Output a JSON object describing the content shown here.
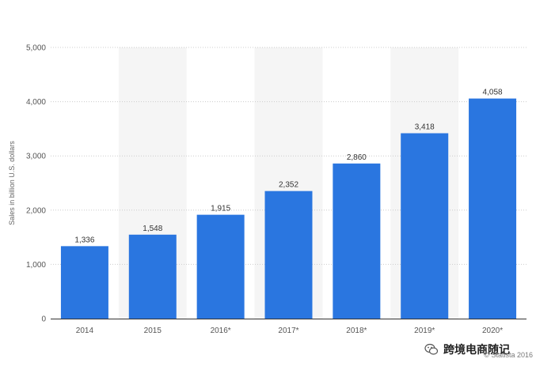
{
  "chart_data": {
    "type": "bar",
    "categories": [
      "2014",
      "2015",
      "2016*",
      "2017*",
      "2018*",
      "2019*",
      "2020*"
    ],
    "values": [
      1336,
      1548,
      1915,
      2352,
      2860,
      3418,
      4058
    ],
    "value_labels": [
      "1,336",
      "1,548",
      "1,915",
      "2,352",
      "2,860",
      "3,418",
      "4,058"
    ],
    "ylabel": "Sales in billion U.S. dollars",
    "xlabel": "",
    "ylim": [
      0,
      5000
    ],
    "yticks": [
      0,
      1000,
      2000,
      3000,
      4000,
      5000
    ],
    "ytick_labels": [
      "0",
      "1,000",
      "2,000",
      "3,000",
      "4,000",
      "5,000"
    ],
    "grid": true,
    "alternating_column_shading": true,
    "colors": {
      "bar": "#2a76e0",
      "shading": "#f5f5f5",
      "grid": "#cccccc",
      "axis": "#333333"
    }
  },
  "footer": {
    "copyright": "© Statista 2016",
    "watermark_text": "跨境电商随记",
    "watermark_icon": "wechat-icon"
  }
}
